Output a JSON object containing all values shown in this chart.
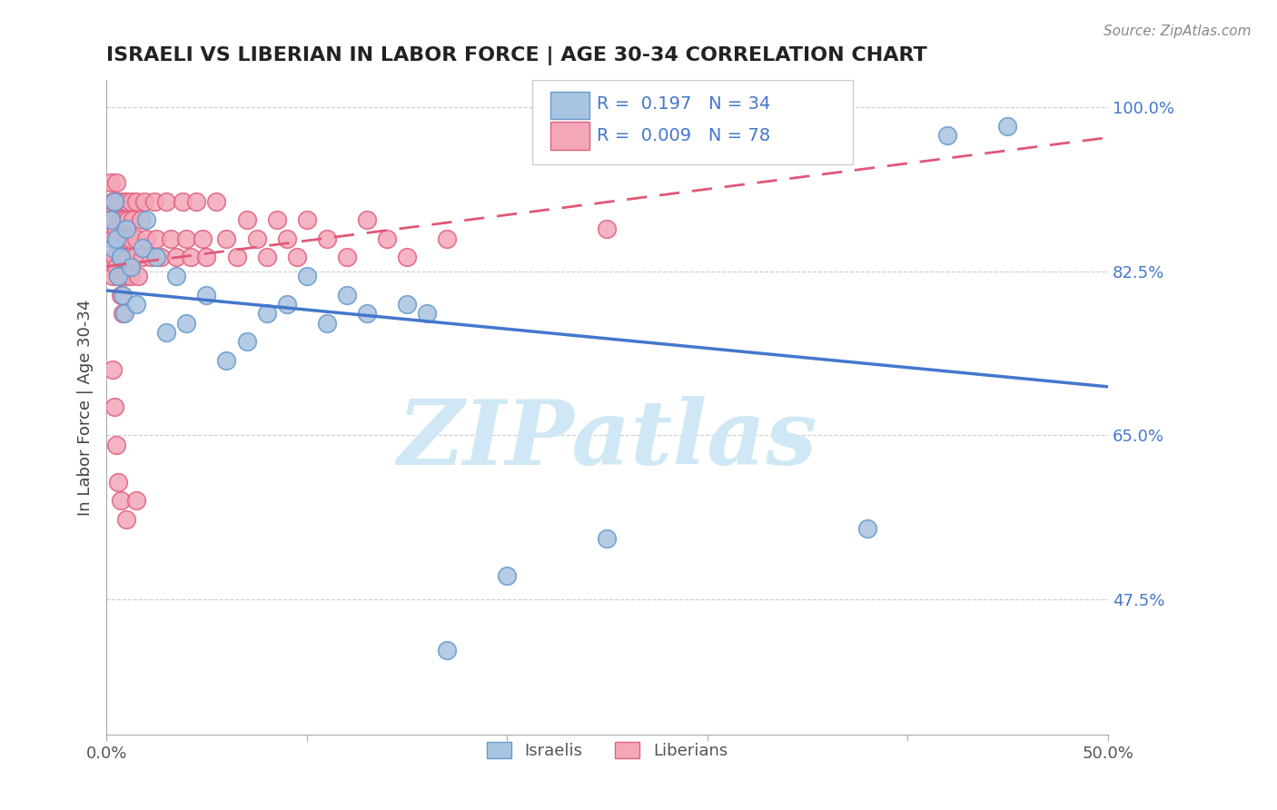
{
  "title": "ISRAELI VS LIBERIAN IN LABOR FORCE | AGE 30-34 CORRELATION CHART",
  "source": "Source: ZipAtlas.com",
  "xlabel": "",
  "ylabel": "In Labor Force | Age 30-34",
  "xlim": [
    0.0,
    0.5
  ],
  "ylim": [
    0.33,
    1.03
  ],
  "xticks": [
    0.0,
    0.1,
    0.2,
    0.3,
    0.4,
    0.5
  ],
  "xticklabels": [
    "0.0%",
    "",
    "",
    "",
    "",
    "50.0%"
  ],
  "ytick_positions": [
    0.475,
    0.65,
    0.825,
    1.0
  ],
  "ytick_labels": [
    "47.5%",
    "65.0%",
    "82.5%",
    "100.0%"
  ],
  "israeli_color": "#a8c4e0",
  "liberian_color": "#f4a7b9",
  "israeli_edge": "#6699cc",
  "liberian_edge": "#e06080",
  "trend_israeli_color": "#4477cc",
  "trend_liberian_color": "#e05878",
  "R_israeli": 0.197,
  "N_israeli": 34,
  "R_liberian": 0.009,
  "N_liberian": 78,
  "background": "#ffffff",
  "grid_color": "#cccccc",
  "watermark": "ZIPatlas",
  "watermark_color": "#d0e8f5",
  "israeli_points_x": [
    0.002,
    0.003,
    0.004,
    0.005,
    0.006,
    0.007,
    0.008,
    0.009,
    0.01,
    0.012,
    0.015,
    0.018,
    0.02,
    0.025,
    0.03,
    0.035,
    0.04,
    0.05,
    0.06,
    0.07,
    0.08,
    0.09,
    0.1,
    0.11,
    0.12,
    0.13,
    0.15,
    0.16,
    0.17,
    0.2,
    0.25,
    0.38,
    0.42,
    0.45
  ],
  "israeli_points_y": [
    0.88,
    0.85,
    0.9,
    0.86,
    0.82,
    0.84,
    0.8,
    0.78,
    0.87,
    0.83,
    0.79,
    0.85,
    0.88,
    0.84,
    0.76,
    0.82,
    0.77,
    0.8,
    0.73,
    0.75,
    0.78,
    0.79,
    0.82,
    0.77,
    0.8,
    0.78,
    0.79,
    0.78,
    0.42,
    0.5,
    0.54,
    0.55,
    0.97,
    0.98
  ],
  "liberian_points_x": [
    0.001,
    0.002,
    0.002,
    0.002,
    0.003,
    0.003,
    0.003,
    0.004,
    0.004,
    0.005,
    0.005,
    0.005,
    0.006,
    0.006,
    0.006,
    0.007,
    0.007,
    0.007,
    0.008,
    0.008,
    0.008,
    0.008,
    0.009,
    0.009,
    0.01,
    0.01,
    0.01,
    0.011,
    0.011,
    0.012,
    0.012,
    0.012,
    0.013,
    0.014,
    0.015,
    0.015,
    0.016,
    0.017,
    0.018,
    0.019,
    0.02,
    0.022,
    0.024,
    0.025,
    0.027,
    0.03,
    0.032,
    0.035,
    0.038,
    0.04,
    0.042,
    0.045,
    0.048,
    0.05,
    0.055,
    0.06,
    0.065,
    0.07,
    0.075,
    0.08,
    0.085,
    0.09,
    0.095,
    0.1,
    0.11,
    0.12,
    0.13,
    0.14,
    0.15,
    0.17,
    0.003,
    0.004,
    0.005,
    0.006,
    0.007,
    0.01,
    0.015,
    0.25
  ],
  "liberian_points_y": [
    0.88,
    0.92,
    0.87,
    0.83,
    0.9,
    0.86,
    0.82,
    0.88,
    0.84,
    0.92,
    0.87,
    0.83,
    0.9,
    0.86,
    0.82,
    0.88,
    0.84,
    0.8,
    0.9,
    0.86,
    0.82,
    0.78,
    0.88,
    0.84,
    0.9,
    0.86,
    0.82,
    0.88,
    0.84,
    0.9,
    0.86,
    0.82,
    0.88,
    0.84,
    0.9,
    0.86,
    0.82,
    0.88,
    0.84,
    0.9,
    0.86,
    0.84,
    0.9,
    0.86,
    0.84,
    0.9,
    0.86,
    0.84,
    0.9,
    0.86,
    0.84,
    0.9,
    0.86,
    0.84,
    0.9,
    0.86,
    0.84,
    0.88,
    0.86,
    0.84,
    0.88,
    0.86,
    0.84,
    0.88,
    0.86,
    0.84,
    0.88,
    0.86,
    0.84,
    0.86,
    0.72,
    0.68,
    0.64,
    0.6,
    0.58,
    0.56,
    0.58,
    0.87
  ]
}
